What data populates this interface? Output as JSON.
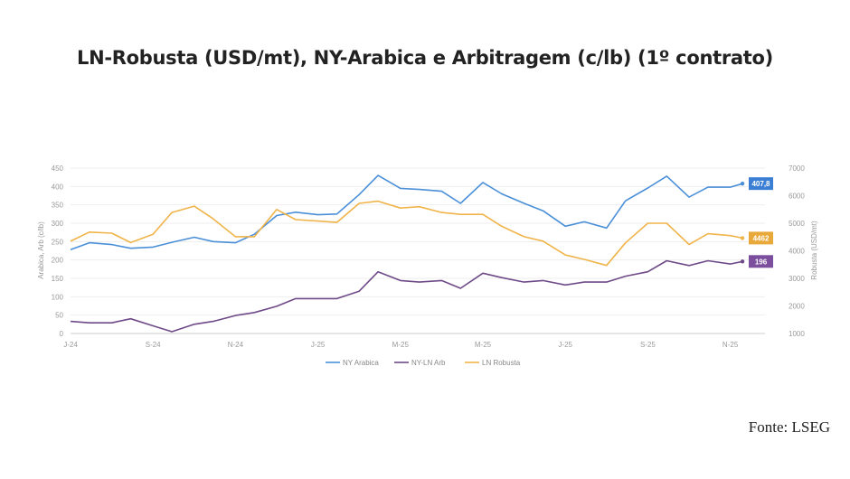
{
  "chart_data": {
    "type": "line",
    "title": "LN-Robusta (USD/mt), NY-Arabica e Arbitragem (c/lb) (1º contrato)",
    "ylabel_left": "Arabica, Arb (c/lb)",
    "ylabel_right": "Robusta (USD/mt)",
    "ylim_left": [
      0,
      450
    ],
    "ylim_right": [
      1000,
      7000
    ],
    "yticks_left": [
      "0",
      "50",
      "100",
      "150",
      "200",
      "250",
      "300",
      "350",
      "400",
      "450"
    ],
    "yticks_right": [
      "1000",
      "2000",
      "3000",
      "4000",
      "5000",
      "6000",
      "7000"
    ],
    "xticks": [
      "J-24",
      "S-24",
      "N-24",
      "J-25",
      "M-25",
      "M-25",
      "J-25",
      "S-25",
      "N-25"
    ],
    "grid": true,
    "legend_position": "bottom",
    "x": [
      "2024-07-01",
      "2024-07-15",
      "2024-08-01",
      "2024-08-15",
      "2024-09-01",
      "2024-09-15",
      "2024-10-01",
      "2024-10-15",
      "2024-11-01",
      "2024-11-15",
      "2024-12-01",
      "2024-12-15",
      "2025-01-01",
      "2025-01-15",
      "2025-02-01",
      "2025-02-15",
      "2025-03-01",
      "2025-03-15",
      "2025-04-01",
      "2025-04-15",
      "2025-05-01",
      "2025-05-15",
      "2025-06-01",
      "2025-06-15",
      "2025-07-01",
      "2025-07-15",
      "2025-08-01",
      "2025-08-15",
      "2025-09-01",
      "2025-09-15",
      "2025-10-01",
      "2025-10-15",
      "2025-11-01",
      "2025-11-10"
    ],
    "series": [
      {
        "name": "NY Arabica",
        "axis": "left",
        "color": "#4a8fd8",
        "last_label": "407,8",
        "badge_color": "#3b7fd4",
        "values": [
          228,
          247,
          242,
          232,
          235,
          248,
          262,
          250,
          247,
          270,
          321,
          330,
          323,
          325,
          378,
          430,
          395,
          392,
          387,
          354,
          411,
          380,
          354,
          334,
          292,
          304,
          287,
          361,
          396,
          428,
          371,
          398,
          398,
          407.8
        ]
      },
      {
        "name": "NY-LN Arb",
        "axis": "left",
        "color": "#6e4a88",
        "last_label": "196",
        "badge_color": "#7b4f9d",
        "values": [
          33,
          29,
          29,
          40,
          21,
          5,
          25,
          33,
          49,
          57,
          74,
          95,
          95,
          95,
          115,
          168,
          144,
          140,
          144,
          123,
          164,
          152,
          140,
          144,
          132,
          140,
          140,
          156,
          168,
          198,
          185,
          198,
          189,
          196
        ]
      },
      {
        "name": "LN Robusta",
        "axis": "right",
        "color": "#f0b44a",
        "last_label": "4462",
        "badge_color": "#e9a93a",
        "values": [
          4347,
          4680,
          4640,
          4300,
          4600,
          5390,
          5620,
          5160,
          4510,
          4510,
          5500,
          5130,
          5080,
          5030,
          5720,
          5800,
          5550,
          5600,
          5390,
          5320,
          5320,
          4890,
          4510,
          4350,
          3850,
          3690,
          3470,
          4290,
          5000,
          5000,
          4230,
          4620,
          4550,
          4462
        ]
      }
    ]
  },
  "source": "Fonte: LSEG"
}
